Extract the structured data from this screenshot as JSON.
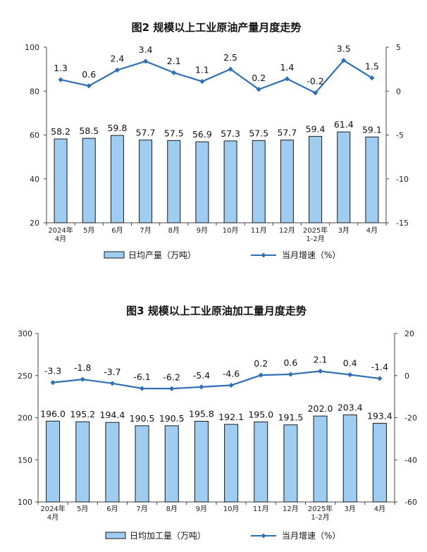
{
  "chart_data": [
    {
      "type": "bar+line",
      "title": "图2  规模以上工业原油产量月度走势",
      "categories": [
        "2024年\n4月",
        "5月",
        "6月",
        "7月",
        "8月",
        "9月",
        "10月",
        "11月",
        "12月",
        "2025年\n1-2月",
        "3月",
        "4月"
      ],
      "series": [
        {
          "name": "日均产量（万吨）",
          "type": "bar",
          "axis": "left",
          "values": [
            58.2,
            58.5,
            59.8,
            57.7,
            57.5,
            56.9,
            57.3,
            57.5,
            57.7,
            59.4,
            61.4,
            59.1
          ]
        },
        {
          "name": "当月增速（%）",
          "type": "line",
          "axis": "right",
          "values": [
            1.3,
            0.6,
            2.4,
            3.4,
            2.1,
            1.1,
            2.5,
            0.2,
            1.4,
            -0.2,
            3.5,
            1.5
          ]
        }
      ],
      "left_axis": {
        "ylim": [
          20,
          100
        ],
        "ticks": [
          20,
          40,
          60,
          80,
          100
        ]
      },
      "right_axis": {
        "ylim": [
          -15,
          5
        ],
        "ticks": [
          -15,
          -10,
          -5,
          0,
          5
        ]
      },
      "legend_position": "bottom",
      "colors": {
        "bar_fill": "#9fcdf2",
        "bar_stroke": "#1a1a1a",
        "line": "#2e6fb7",
        "marker": "#2e6fb7"
      }
    },
    {
      "type": "bar+line",
      "title": "图3  规模以上工业原油加工量月度走势",
      "categories": [
        "2024年\n4月",
        "5月",
        "6月",
        "7月",
        "8月",
        "9月",
        "10月",
        "11月",
        "12月",
        "2025年\n1-2月",
        "3月",
        "4月"
      ],
      "series": [
        {
          "name": "日均加工量（万吨）",
          "type": "bar",
          "axis": "left",
          "values": [
            196.0,
            195.2,
            194.4,
            190.5,
            190.5,
            195.8,
            192.1,
            195.0,
            191.5,
            202.0,
            203.4,
            193.4
          ]
        },
        {
          "name": "当月增速（%）",
          "type": "line",
          "axis": "right",
          "values": [
            -3.3,
            -1.8,
            -3.7,
            -6.1,
            -6.2,
            -5.4,
            -4.6,
            0.2,
            0.6,
            2.1,
            0.4,
            -1.4
          ]
        }
      ],
      "left_axis": {
        "ylim": [
          100,
          300
        ],
        "ticks": [
          100,
          150,
          200,
          250,
          300
        ]
      },
      "right_axis": {
        "ylim": [
          -60,
          20
        ],
        "ticks": [
          -60,
          -40,
          -20,
          0,
          20
        ]
      },
      "legend_position": "bottom",
      "colors": {
        "bar_fill": "#9fcdf2",
        "bar_stroke": "#1a1a1a",
        "line": "#2e6fb7",
        "marker": "#2e6fb7"
      }
    }
  ]
}
